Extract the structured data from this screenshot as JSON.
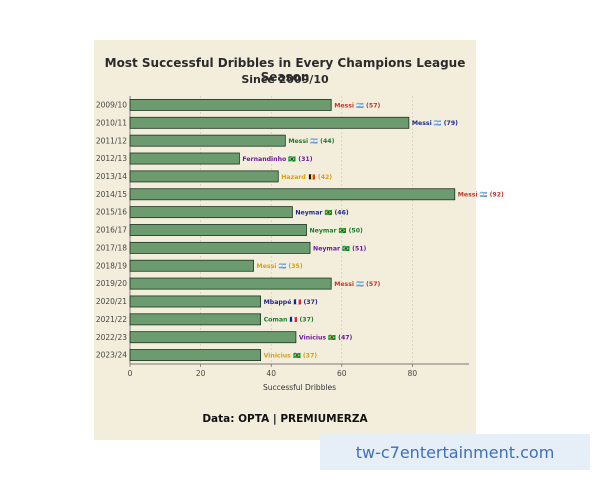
{
  "chart_data": {
    "type": "bar",
    "orientation": "horizontal",
    "title": "Most Successful Dribbles in Every Champions League Season",
    "subtitle": "Since 2009/10",
    "xlabel": "Successful Dribbles",
    "ylabel": "",
    "xlim": [
      0,
      96
    ],
    "xticks": [
      0,
      20,
      40,
      60,
      80
    ],
    "grid": true,
    "categories": [
      "2009/10",
      "2010/11",
      "2011/12",
      "2012/13",
      "2013/14",
      "2014/15",
      "2015/16",
      "2016/17",
      "2017/18",
      "2018/19",
      "2019/20",
      "2020/21",
      "2021/22",
      "2022/23",
      "2023/24"
    ],
    "values": [
      57,
      79,
      44,
      31,
      42,
      92,
      46,
      50,
      51,
      35,
      57,
      37,
      37,
      47,
      37
    ],
    "labels": [
      "Messi 🇦🇷 (57)",
      "Messi 🇦🇷 (79)",
      "Messi 🇦🇷 (44)",
      "Fernandinho 🇧🇷 (31)",
      "Hazard 🇧🇪 (42)",
      "Messi 🇦🇷 (92)",
      "Neymar 🇧🇷 (46)",
      "Neymar 🇧🇷 (50)",
      "Neymar 🇧🇷 (51)",
      "Messi 🇦🇷 (35)",
      "Messi 🇦🇷 (57)",
      "Mbappé 🇫🇷 (37)",
      "Coman 🇫🇷 (37)",
      "Vinicius 🇧🇷 (47)",
      "Vinicius 🇧🇷 (37)"
    ],
    "label_colors": [
      "#c0392b",
      "#1f2a8a",
      "#1e7a2e",
      "#6a1b9a",
      "#d4a017",
      "#c0392b",
      "#1f2a8a",
      "#1e7a2e",
      "#6a1b9a",
      "#d4a017",
      "#c0392b",
      "#1f2a8a",
      "#1e7a2e",
      "#6a1b9a",
      "#d4a017"
    ],
    "bar_color": "#6b9b6e",
    "bar_edge_color": "#1f3320"
  },
  "footer": "Data: OPTA | PREMIUMERZA",
  "watermark": "tw-c7entertainment.com"
}
